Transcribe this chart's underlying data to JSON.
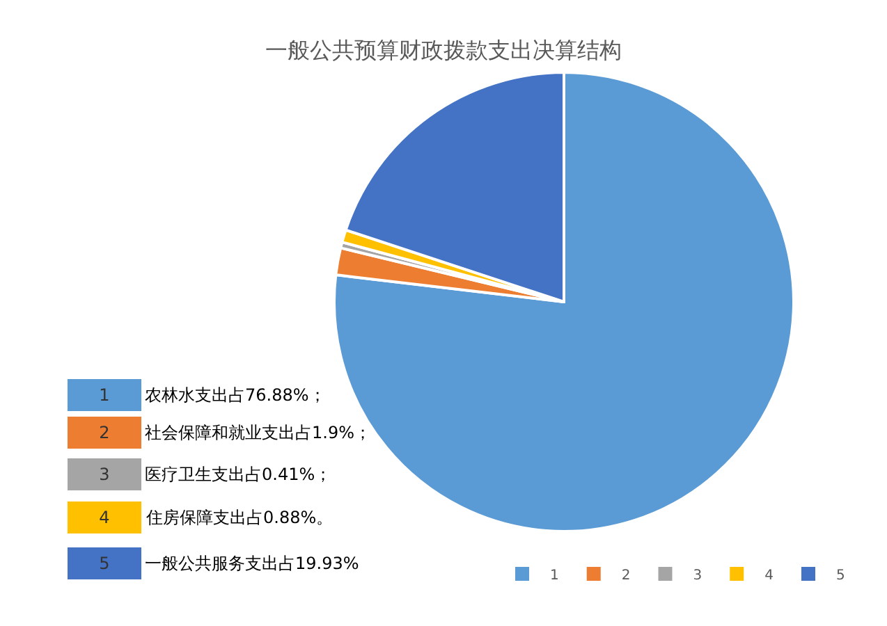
{
  "chart_data": {
    "type": "pie",
    "title": "一般公共预算财政拨款支出决算结构",
    "categories": [
      "1",
      "2",
      "3",
      "4",
      "5"
    ],
    "values": [
      76.88,
      1.9,
      0.41,
      0.88,
      19.93
    ],
    "colors": [
      "#5b9bd5",
      "#ed7d31",
      "#a5a5a5",
      "#ffc000",
      "#4472c4"
    ],
    "legend": "bottom right",
    "annotations": [
      "农林水支出占76.88%；",
      "社会保障和就业支出占1.9%；",
      "医疗卫生支出占0.41%；",
      "住房保障支出占0.88%。",
      "一般公共服务支出占19.93%"
    ]
  }
}
